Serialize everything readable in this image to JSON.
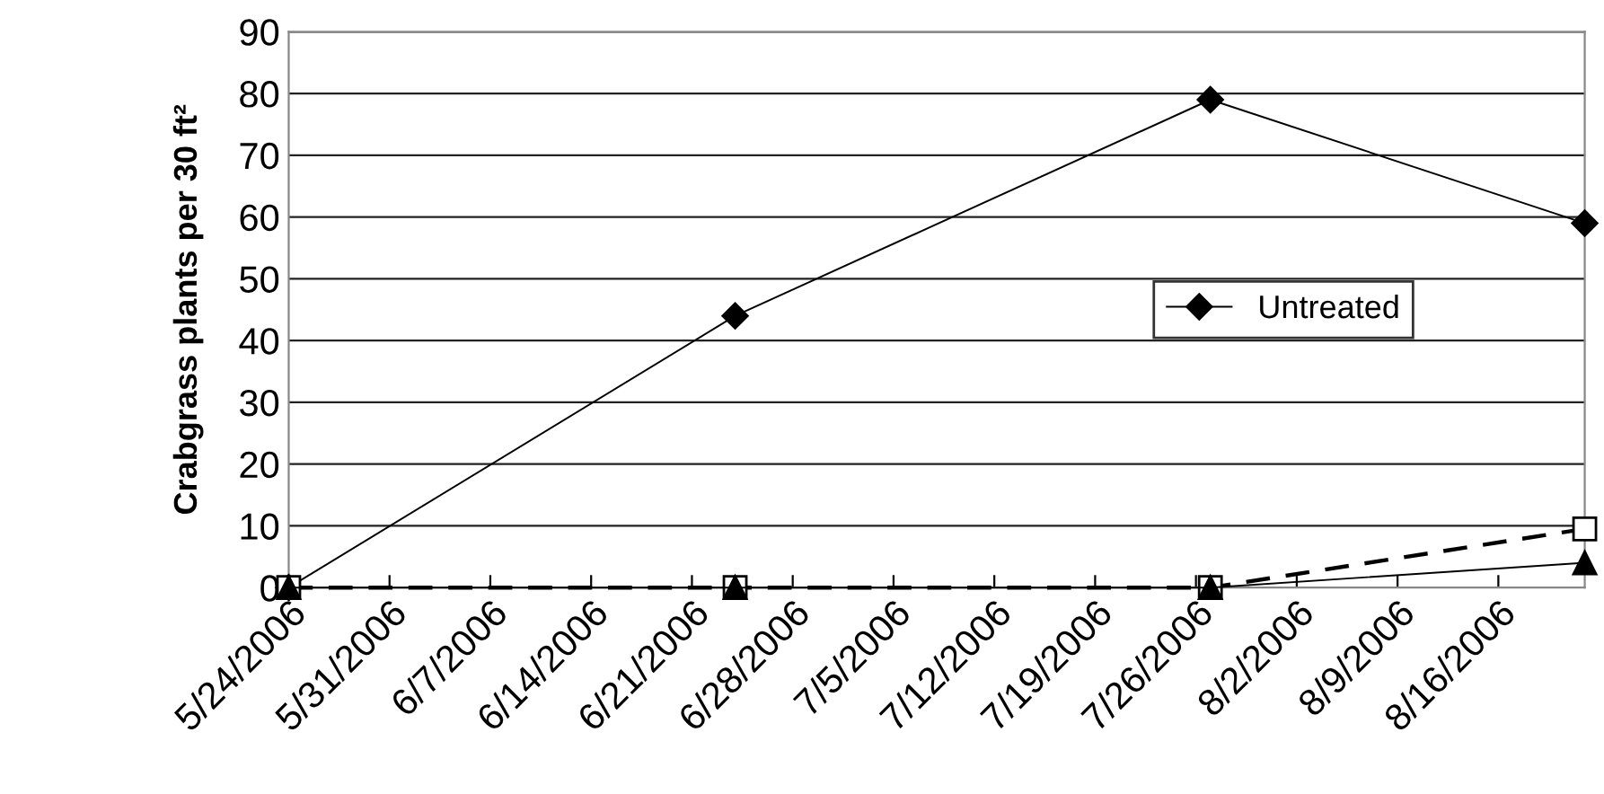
{
  "chart_data": {
    "type": "line",
    "ylabel": "Crabgrass plants per 30 ft²",
    "x": [
      "2006-05-24",
      "2006-06-24",
      "2006-07-27",
      "2006-08-22"
    ],
    "series": [
      {
        "name": "Untreated",
        "color": "#000000",
        "values": [
          0,
          44,
          79,
          59
        ],
        "marker": "diamond",
        "line_style": "solid"
      },
      {
        "color": "#000000",
        "values": [
          0,
          0,
          0,
          9.5
        ],
        "marker": "square",
        "line_style": "dashed"
      },
      {
        "color": "#000000",
        "values": [
          0,
          0,
          0,
          4
        ],
        "marker": "triangle",
        "line_style": "solid"
      }
    ],
    "xlim": [
      "2006-05-24",
      "2006-08-22"
    ],
    "xticks": [
      {
        "value": "2006-05-24",
        "label": "5/24/2006"
      },
      {
        "value": "2006-05-31",
        "label": "5/31/2006"
      },
      {
        "value": "2006-06-07",
        "label": "6/7/2006"
      },
      {
        "value": "2006-06-14",
        "label": "6/14/2006"
      },
      {
        "value": "2006-06-21",
        "label": "6/21/2006"
      },
      {
        "value": "2006-06-28",
        "label": "6/28/2006"
      },
      {
        "value": "2006-07-05",
        "label": "7/5/2006"
      },
      {
        "value": "2006-07-12",
        "label": "7/12/2006"
      },
      {
        "value": "2006-07-19",
        "label": "7/19/2006"
      },
      {
        "value": "2006-07-26",
        "label": "7/26/2006"
      },
      {
        "value": "2006-08-02",
        "label": "8/2/2006"
      },
      {
        "value": "2006-08-09",
        "label": "8/9/2006"
      },
      {
        "value": "2006-08-16",
        "label": "8/16/2006"
      }
    ],
    "ylim": [
      0,
      90
    ],
    "yticks": [
      0,
      10,
      20,
      30,
      40,
      50,
      60,
      70,
      80,
      90
    ],
    "grid": "y",
    "legend": "right"
  }
}
